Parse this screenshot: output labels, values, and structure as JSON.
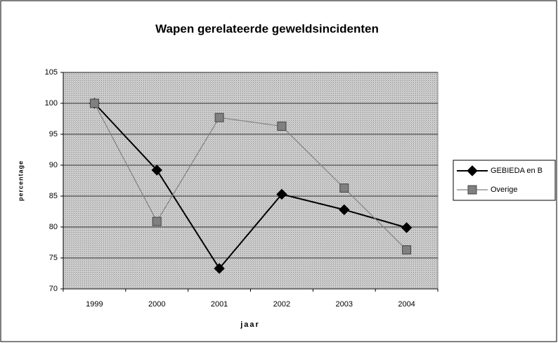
{
  "chart_data": {
    "type": "line",
    "title": "Wapen gerelateerde geweldsincidenten",
    "xlabel": "jaar",
    "ylabel": "percentage",
    "categories": [
      "1999",
      "2000",
      "2001",
      "2002",
      "2003",
      "2004"
    ],
    "series": [
      {
        "name": "GEBIEDA en B",
        "color": "#000000",
        "marker": "diamond",
        "values": [
          100,
          89.2,
          73.3,
          85.3,
          82.8,
          79.9
        ]
      },
      {
        "name": "Overige",
        "color": "#808080",
        "marker": "square",
        "values": [
          100,
          80.9,
          97.7,
          96.3,
          86.3,
          76.3
        ]
      }
    ],
    "ylim": [
      70,
      105
    ],
    "yticks": [
      70,
      75,
      80,
      85,
      90,
      95,
      100,
      105
    ],
    "grid": true,
    "legend": "right"
  }
}
